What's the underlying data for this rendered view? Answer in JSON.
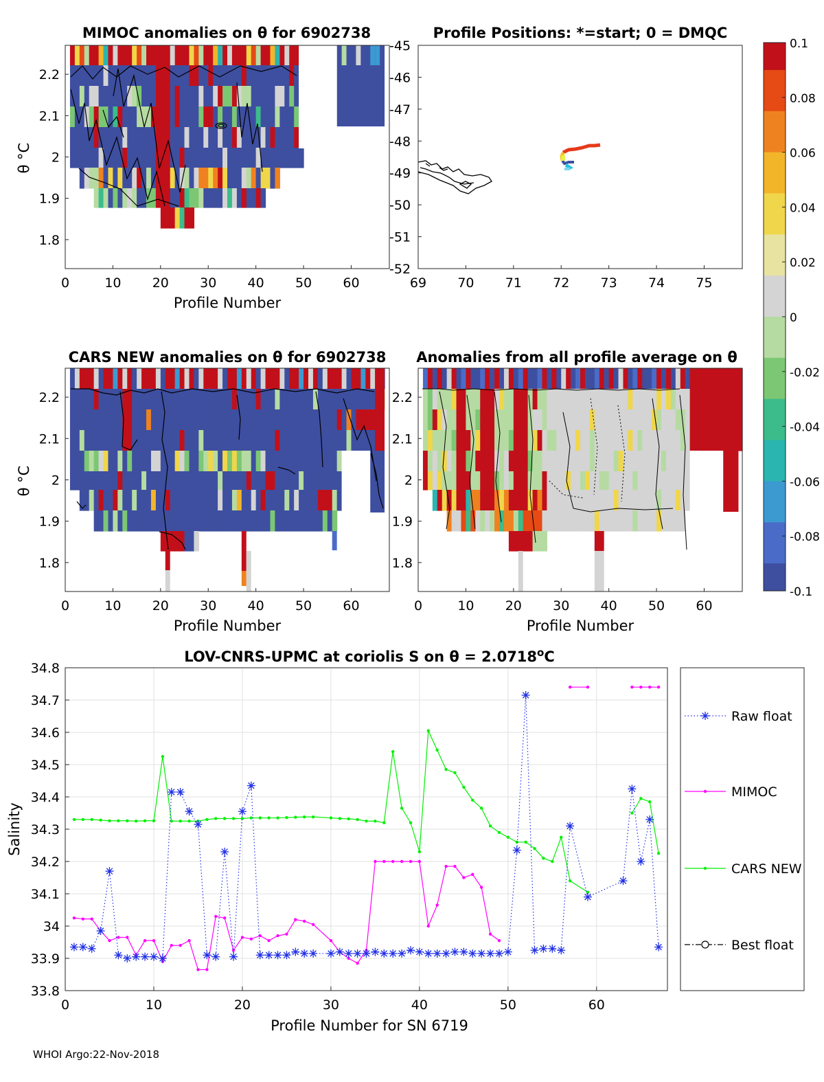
{
  "footer": "WHOI Argo:22-Nov-2018",
  "colors": {
    "raw_float": "#1f2fe6",
    "mimoc": "#ff00ff",
    "cars_new": "#00f000",
    "best_float": "#000000",
    "colormap": [
      "#3e4fa0",
      "#4a6cc8",
      "#3c9ad1",
      "#2bb5b0",
      "#3cbc8a",
      "#7cc774",
      "#b6dba2",
      "#d4d4d4",
      "#e8e3a0",
      "#f0d64a",
      "#f2b52a",
      "#ef8220",
      "#e64a15",
      "#c2101a"
    ]
  },
  "panels": {
    "mimoc": {
      "title": "MIMOC anomalies on θ  for 6902738",
      "xlabel": "Profile Number",
      "ylabel": "θ °C",
      "xticks": [
        0,
        10,
        20,
        30,
        40,
        50,
        60
      ],
      "yticks": [
        1.8,
        1.9,
        2,
        2.1,
        2.2
      ],
      "xlim": [
        0,
        68
      ],
      "ylim": [
        1.73,
        2.27
      ]
    },
    "positions": {
      "title": "Profile Positions: *=start; 0 = DMQC",
      "xticks": [
        69,
        70,
        71,
        72,
        73,
        74,
        75
      ],
      "yticks": [
        -45,
        -46,
        -47,
        -48,
        -49,
        -50,
        -51,
        -52
      ],
      "xlim": [
        69,
        75.8
      ],
      "ylim": [
        -52,
        -45
      ]
    },
    "cars": {
      "title": "CARS NEW anomalies on θ for 6902738",
      "xlabel": "Profile Number",
      "ylabel": "θ °C",
      "xticks": [
        0,
        10,
        20,
        30,
        40,
        50,
        60
      ],
      "yticks": [
        1.8,
        1.9,
        2,
        2.1,
        2.2
      ],
      "xlim": [
        0,
        68
      ],
      "ylim": [
        1.73,
        2.27
      ]
    },
    "average": {
      "title": "Anomalies from all profile average on θ",
      "xlabel": "Profile Number",
      "xticks": [
        0,
        10,
        20,
        30,
        40,
        50,
        60
      ],
      "yticks": [
        1.8,
        1.9,
        2,
        2.1,
        2.2
      ],
      "xlim": [
        0,
        68
      ],
      "ylim": [
        1.73,
        2.27
      ]
    },
    "colorbar": {
      "ticks": [
        "0.1",
        "0.08",
        "0.06",
        "0.04",
        "0.02",
        "0",
        "-0.02",
        "-0.04",
        "-0.06",
        "-0.08",
        "-0.1"
      ],
      "range": [
        -0.1,
        0.1
      ]
    }
  },
  "chart_data": {
    "type": "line",
    "title": "LOV-CNRS-UPMC at coriolis S on θ = 2.0718°C",
    "xlabel": "Profile Number for SN 6719",
    "ylabel": "Salinity",
    "xlim": [
      0,
      68
    ],
    "ylim": [
      33.8,
      34.8
    ],
    "xticks": [
      0,
      10,
      20,
      30,
      40,
      50,
      60
    ],
    "yticks": [
      "33.8",
      "33.9",
      "34",
      "34.1",
      "34.2",
      "34.3",
      "34.4",
      "34.5",
      "34.6",
      "34.7",
      "34.8"
    ],
    "grid": true,
    "legend_position": "outside-right",
    "series": [
      {
        "name": "Raw float",
        "marker": "asterisk",
        "style": "dotted",
        "x": [
          1,
          2,
          3,
          4,
          5,
          6,
          7,
          8,
          9,
          10,
          11,
          12,
          13,
          14,
          15,
          16,
          17,
          18,
          19,
          20,
          21,
          22,
          23,
          24,
          25,
          26,
          27,
          28,
          30,
          31,
          32,
          33,
          34,
          35,
          36,
          37,
          38,
          39,
          40,
          41,
          42,
          43,
          44,
          45,
          46,
          47,
          48,
          49,
          50,
          51,
          52,
          53,
          54,
          55,
          56,
          57,
          59,
          63,
          64,
          65,
          66,
          67
        ],
        "y": [
          33.935,
          33.935,
          33.93,
          33.985,
          34.17,
          33.91,
          33.9,
          33.905,
          33.905,
          33.905,
          33.9,
          34.415,
          34.415,
          34.355,
          34.315,
          33.91,
          33.905,
          34.23,
          33.905,
          34.355,
          34.435,
          33.91,
          33.91,
          33.91,
          33.91,
          33.92,
          33.915,
          33.915,
          33.915,
          33.92,
          33.915,
          33.915,
          33.915,
          33.92,
          33.915,
          33.915,
          33.915,
          33.925,
          33.92,
          33.915,
          33.915,
          33.915,
          33.92,
          33.92,
          33.915,
          33.915,
          33.915,
          33.915,
          33.92,
          34.235,
          34.715,
          33.925,
          33.93,
          33.93,
          33.925,
          34.31,
          34.09,
          34.14,
          34.425,
          34.2,
          34.33,
          33.935
        ]
      },
      {
        "name": "MIMOC",
        "marker": "dot",
        "style": "solid",
        "segments": [
          {
            "x": [
              1,
              2,
              3,
              4,
              5,
              6,
              7,
              8,
              9,
              10,
              11,
              12,
              13,
              14,
              15,
              16,
              17,
              18,
              19,
              20,
              21,
              22,
              23,
              24,
              25,
              26,
              27,
              28,
              30,
              31,
              32,
              33,
              34,
              35,
              36,
              37,
              38,
              39,
              40,
              41,
              42,
              43,
              44,
              45,
              46,
              47,
              48,
              49
            ],
            "y": [
              34.025,
              34.022,
              34.022,
              33.985,
              33.955,
              33.965,
              33.965,
              33.91,
              33.955,
              33.955,
              33.89,
              33.94,
              33.94,
              33.955,
              33.865,
              33.865,
              34.03,
              34.025,
              33.925,
              33.965,
              33.96,
              33.97,
              33.955,
              33.97,
              33.975,
              34.02,
              34.015,
              34.005,
              33.955,
              33.92,
              33.9,
              33.885,
              33.925,
              34.2,
              34.2,
              34.2,
              34.2,
              34.2,
              34.2,
              34.0,
              34.065,
              34.185,
              34.185,
              34.15,
              34.16,
              34.12,
              33.975,
              33.955
            ]
          },
          {
            "x": [
              57,
              59
            ],
            "y": [
              34.74,
              34.74
            ]
          },
          {
            "x": [
              64,
              65,
              66,
              67
            ],
            "y": [
              34.74,
              34.74,
              34.74,
              34.74
            ]
          }
        ]
      },
      {
        "name": "CARS NEW",
        "marker": "dot",
        "style": "solid",
        "segments": [
          {
            "x": [
              1,
              2,
              3,
              4,
              5,
              6,
              7,
              8,
              9,
              10,
              11,
              12,
              13,
              14,
              15,
              16,
              17,
              18,
              19,
              20,
              21,
              22,
              23,
              24,
              25,
              26,
              27,
              28,
              30,
              31,
              32,
              33,
              34,
              35,
              36,
              37,
              38,
              39,
              40,
              41,
              42,
              43,
              44,
              45,
              46,
              47,
              48,
              49,
              50,
              51,
              52,
              53,
              54,
              55,
              56,
              57,
              59
            ],
            "y": [
              34.33,
              34.33,
              34.33,
              34.328,
              34.326,
              34.326,
              34.326,
              34.325,
              34.326,
              34.326,
              34.525,
              34.325,
              34.325,
              34.325,
              34.325,
              34.33,
              34.333,
              34.333,
              34.333,
              34.333,
              34.335,
              34.335,
              34.335,
              34.335,
              34.336,
              34.337,
              34.338,
              34.338,
              34.335,
              34.333,
              34.332,
              34.33,
              34.325,
              34.325,
              34.32,
              34.54,
              34.365,
              34.32,
              34.23,
              34.605,
              34.545,
              34.485,
              34.475,
              34.43,
              34.39,
              34.365,
              34.31,
              34.29,
              34.275,
              34.26,
              34.26,
              34.24,
              34.21,
              34.2,
              34.275,
              34.14,
              34.105
            ]
          },
          {
            "x": [
              64,
              65,
              66,
              67
            ],
            "y": [
              34.35,
              34.395,
              34.385,
              34.225
            ]
          }
        ]
      },
      {
        "name": "Best float",
        "marker": "circle",
        "style": "dash-dot",
        "x": [],
        "y": []
      }
    ]
  }
}
